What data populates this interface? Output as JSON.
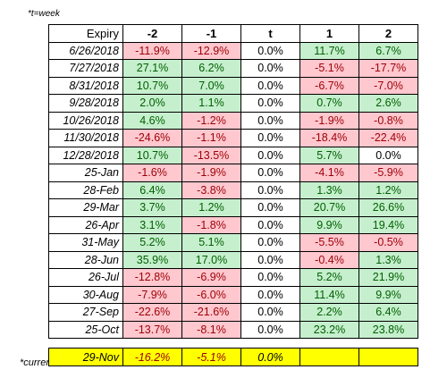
{
  "note": "*t=week",
  "colors": {
    "positive_fill": "#c6efce",
    "positive_text": "#006100",
    "negative_fill": "#ffc7ce",
    "negative_text": "#9c0006",
    "current_fill": "#ffff00"
  },
  "headers": [
    "Expiry",
    "-2",
    "-1",
    "t",
    "1",
    "2"
  ],
  "rows": [
    {
      "expiry": "6/26/2018",
      "values": [
        "-11.9%",
        "-12.9%",
        "0.0%",
        "11.7%",
        "6.7%"
      ]
    },
    {
      "expiry": "7/27/2018",
      "values": [
        "27.1%",
        "6.2%",
        "0.0%",
        "-5.1%",
        "-17.7%"
      ]
    },
    {
      "expiry": "8/31/2018",
      "values": [
        "10.7%",
        "7.0%",
        "0.0%",
        "-6.7%",
        "-7.0%"
      ]
    },
    {
      "expiry": "9/28/2018",
      "values": [
        "2.0%",
        "1.1%",
        "0.0%",
        "0.7%",
        "2.6%"
      ]
    },
    {
      "expiry": "10/26/2018",
      "values": [
        "4.6%",
        "-1.2%",
        "0.0%",
        "-1.9%",
        "-0.8%"
      ]
    },
    {
      "expiry": "11/30/2018",
      "values": [
        "-24.6%",
        "-1.1%",
        "0.0%",
        "-18.4%",
        "-22.4%"
      ]
    },
    {
      "expiry": "12/28/2018",
      "values": [
        "10.7%",
        "-13.5%",
        "0.0%",
        "5.7%",
        "0.0%"
      ]
    },
    {
      "expiry": "25-Jan",
      "values": [
        "-1.6%",
        "-1.9%",
        "0.0%",
        "-4.1%",
        "-5.9%"
      ]
    },
    {
      "expiry": "28-Feb",
      "values": [
        "6.4%",
        "-3.8%",
        "0.0%",
        "1.3%",
        "1.2%"
      ]
    },
    {
      "expiry": "29-Mar",
      "values": [
        "3.7%",
        "1.2%",
        "0.0%",
        "20.7%",
        "26.6%"
      ]
    },
    {
      "expiry": "26-Apr",
      "values": [
        "3.1%",
        "-1.8%",
        "0.0%",
        "9.9%",
        "19.4%"
      ]
    },
    {
      "expiry": "31-May",
      "values": [
        "5.2%",
        "5.1%",
        "0.0%",
        "-5.5%",
        "-0.5%"
      ]
    },
    {
      "expiry": "28-Jun",
      "values": [
        "35.9%",
        "17.0%",
        "0.0%",
        "-0.4%",
        "1.3%"
      ]
    },
    {
      "expiry": "26-Jul",
      "values": [
        "-12.8%",
        "-6.9%",
        "0.0%",
        "5.2%",
        "21.9%"
      ]
    },
    {
      "expiry": "30-Aug",
      "values": [
        "-7.9%",
        "-6.0%",
        "0.0%",
        "11.4%",
        "9.9%"
      ]
    },
    {
      "expiry": "27-Sep",
      "values": [
        "-22.6%",
        "-21.6%",
        "0.0%",
        "2.2%",
        "6.4%"
      ]
    },
    {
      "expiry": "25-Oct",
      "values": [
        "-13.7%",
        "-8.1%",
        "0.0%",
        "23.2%",
        "23.8%"
      ]
    }
  ],
  "current": {
    "label": "*current",
    "expiry": "29-Nov",
    "values": [
      "-16.2%",
      "-5.1%",
      "0.0%",
      "",
      ""
    ]
  }
}
